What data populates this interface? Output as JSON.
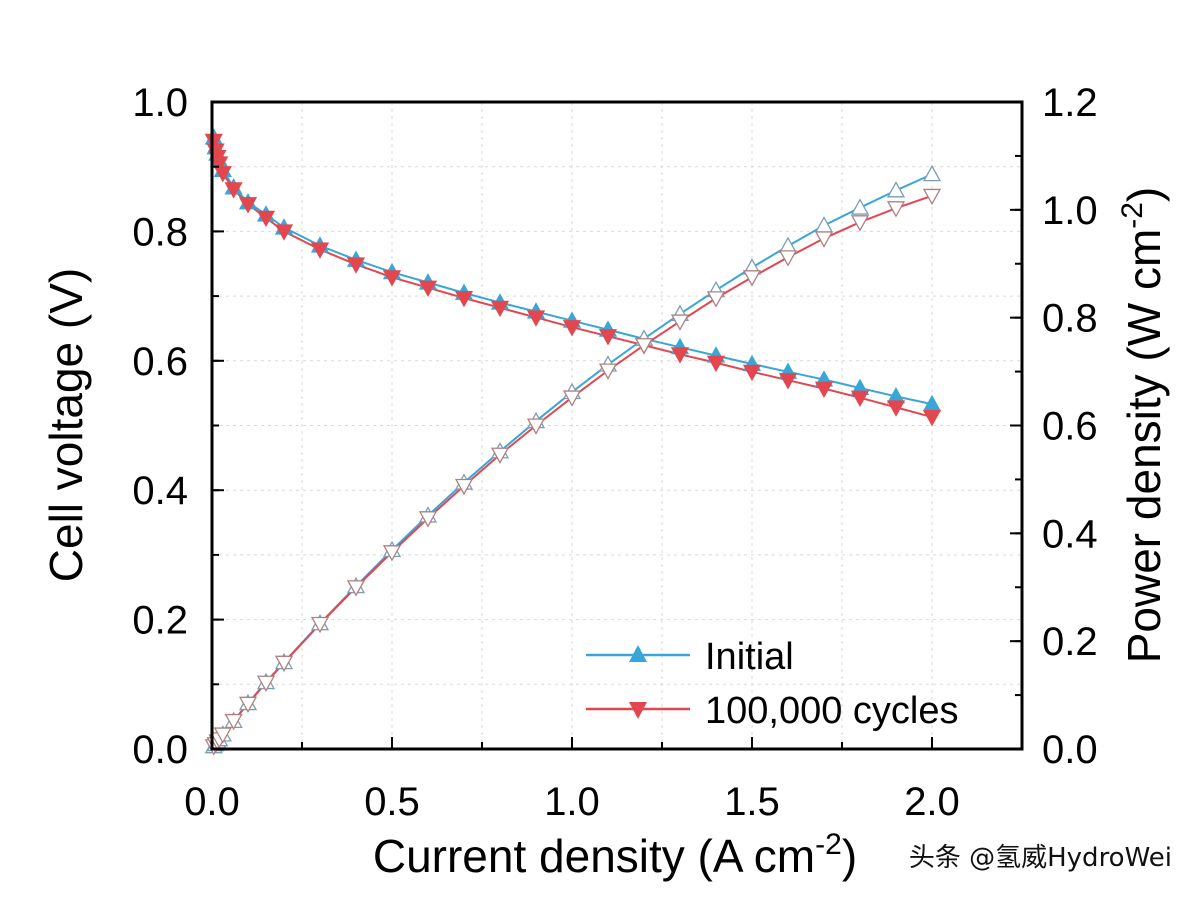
{
  "chart_data": {
    "type": "line",
    "title": "",
    "xlabel": "Current density (A cm",
    "xlabel_sup": "-2",
    "xlabel_close": ")",
    "ylabel_left": "Cell voltage (V)",
    "ylabel_right": "Power density (W cm",
    "ylabel_right_sup": "-2",
    "ylabel_right_close": ")",
    "xlim": [
      0,
      2.25
    ],
    "ylim_left": [
      0,
      1.0
    ],
    "ylim_right": [
      0,
      1.2
    ],
    "x_ticks": [
      "0.0",
      "0.5",
      "1.0",
      "1.5",
      "2.0"
    ],
    "y_left_ticks": [
      "0.0",
      "0.2",
      "0.4",
      "0.6",
      "0.8",
      "1.0"
    ],
    "y_right_ticks": [
      "0.0",
      "0.2",
      "0.4",
      "0.6",
      "0.8",
      "1.0",
      "1.2"
    ],
    "grid": true,
    "legend_position": "bottom-right",
    "x": [
      0.005,
      0.01,
      0.015,
      0.02,
      0.03,
      0.06,
      0.1,
      0.15,
      0.2,
      0.3,
      0.4,
      0.5,
      0.6,
      0.7,
      0.8,
      0.9,
      1.0,
      1.1,
      1.2,
      1.3,
      1.4,
      1.5,
      1.6,
      1.7,
      1.8,
      1.9,
      2.0
    ],
    "series": [
      {
        "name": "Initial",
        "axis": "left",
        "kind": "voltage",
        "color": "#3aa6d8",
        "values": [
          0.945,
          0.93,
          0.92,
          0.91,
          0.895,
          0.868,
          0.845,
          0.826,
          0.806,
          0.778,
          0.756,
          0.737,
          0.721,
          0.705,
          0.69,
          0.676,
          0.662,
          0.648,
          0.634,
          0.621,
          0.608,
          0.595,
          0.583,
          0.571,
          0.558,
          0.545,
          0.533
        ]
      },
      {
        "name": "100,000 cycles",
        "axis": "left",
        "kind": "voltage",
        "color": "#e2474f",
        "values": [
          0.94,
          0.925,
          0.915,
          0.905,
          0.89,
          0.865,
          0.842,
          0.821,
          0.8,
          0.772,
          0.749,
          0.729,
          0.713,
          0.697,
          0.682,
          0.667,
          0.652,
          0.638,
          0.624,
          0.61,
          0.597,
          0.583,
          0.57,
          0.557,
          0.543,
          0.528,
          0.513
        ]
      },
      {
        "name": "Initial power",
        "axis": "right",
        "kind": "power",
        "color": "#3aa6d8",
        "values": [
          0.005,
          0.009,
          0.014,
          0.018,
          0.027,
          0.052,
          0.085,
          0.124,
          0.161,
          0.233,
          0.302,
          0.369,
          0.433,
          0.494,
          0.552,
          0.608,
          0.662,
          0.713,
          0.761,
          0.807,
          0.851,
          0.893,
          0.933,
          0.971,
          1.004,
          1.036,
          1.066
        ]
      },
      {
        "name": "100,000 cycles power",
        "axis": "right",
        "kind": "power",
        "color": "#e2474f",
        "values": [
          0.005,
          0.009,
          0.014,
          0.018,
          0.027,
          0.052,
          0.084,
          0.123,
          0.16,
          0.232,
          0.3,
          0.365,
          0.428,
          0.488,
          0.546,
          0.6,
          0.652,
          0.702,
          0.749,
          0.793,
          0.836,
          0.875,
          0.912,
          0.947,
          0.977,
          1.003,
          1.026
        ]
      }
    ],
    "legend": [
      {
        "label": "Initial",
        "color": "#3aa6d8",
        "marker": "up"
      },
      {
        "label": "100,000 cycles",
        "color": "#e2474f",
        "marker": "down"
      }
    ]
  },
  "watermark": "头条 @氢威HydroWei"
}
